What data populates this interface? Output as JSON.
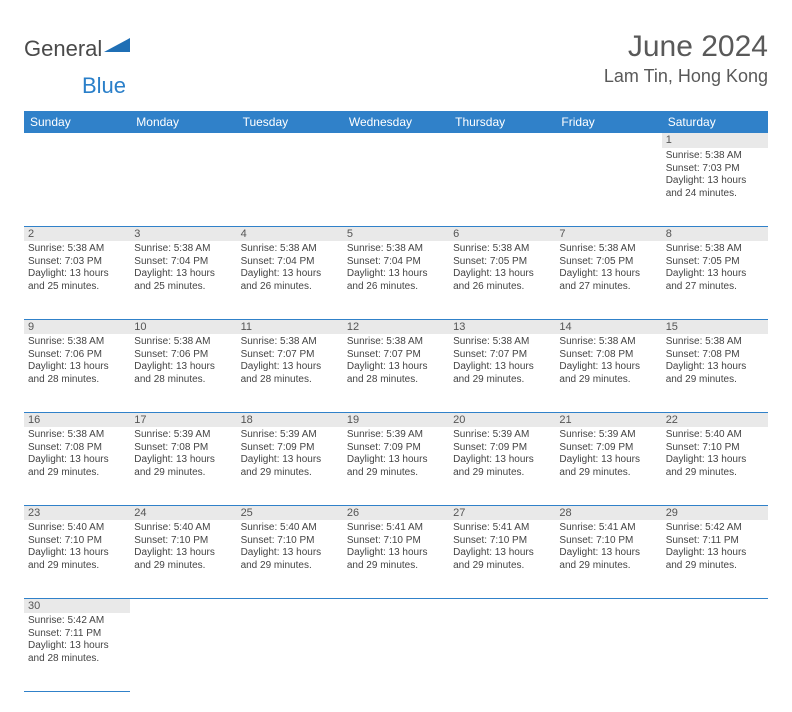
{
  "logo": {
    "text1": "General",
    "text2": "Blue",
    "triangle_color": "#1f6fb5"
  },
  "title": "June 2024",
  "location": "Lam Tin, Hong Kong",
  "colors": {
    "header_bg": "#3081c9",
    "header_text": "#ffffff",
    "daynum_bg": "#e9e9e9",
    "border": "#3081c9",
    "title_color": "#595959"
  },
  "day_headers": [
    "Sunday",
    "Monday",
    "Tuesday",
    "Wednesday",
    "Thursday",
    "Friday",
    "Saturday"
  ],
  "weeks": [
    [
      null,
      null,
      null,
      null,
      null,
      null,
      {
        "n": "1",
        "sr": "Sunrise: 5:38 AM",
        "ss": "Sunset: 7:03 PM",
        "dl": "Daylight: 13 hours and 24 minutes."
      }
    ],
    [
      {
        "n": "2",
        "sr": "Sunrise: 5:38 AM",
        "ss": "Sunset: 7:03 PM",
        "dl": "Daylight: 13 hours and 25 minutes."
      },
      {
        "n": "3",
        "sr": "Sunrise: 5:38 AM",
        "ss": "Sunset: 7:04 PM",
        "dl": "Daylight: 13 hours and 25 minutes."
      },
      {
        "n": "4",
        "sr": "Sunrise: 5:38 AM",
        "ss": "Sunset: 7:04 PM",
        "dl": "Daylight: 13 hours and 26 minutes."
      },
      {
        "n": "5",
        "sr": "Sunrise: 5:38 AM",
        "ss": "Sunset: 7:04 PM",
        "dl": "Daylight: 13 hours and 26 minutes."
      },
      {
        "n": "6",
        "sr": "Sunrise: 5:38 AM",
        "ss": "Sunset: 7:05 PM",
        "dl": "Daylight: 13 hours and 26 minutes."
      },
      {
        "n": "7",
        "sr": "Sunrise: 5:38 AM",
        "ss": "Sunset: 7:05 PM",
        "dl": "Daylight: 13 hours and 27 minutes."
      },
      {
        "n": "8",
        "sr": "Sunrise: 5:38 AM",
        "ss": "Sunset: 7:05 PM",
        "dl": "Daylight: 13 hours and 27 minutes."
      }
    ],
    [
      {
        "n": "9",
        "sr": "Sunrise: 5:38 AM",
        "ss": "Sunset: 7:06 PM",
        "dl": "Daylight: 13 hours and 28 minutes."
      },
      {
        "n": "10",
        "sr": "Sunrise: 5:38 AM",
        "ss": "Sunset: 7:06 PM",
        "dl": "Daylight: 13 hours and 28 minutes."
      },
      {
        "n": "11",
        "sr": "Sunrise: 5:38 AM",
        "ss": "Sunset: 7:07 PM",
        "dl": "Daylight: 13 hours and 28 minutes."
      },
      {
        "n": "12",
        "sr": "Sunrise: 5:38 AM",
        "ss": "Sunset: 7:07 PM",
        "dl": "Daylight: 13 hours and 28 minutes."
      },
      {
        "n": "13",
        "sr": "Sunrise: 5:38 AM",
        "ss": "Sunset: 7:07 PM",
        "dl": "Daylight: 13 hours and 29 minutes."
      },
      {
        "n": "14",
        "sr": "Sunrise: 5:38 AM",
        "ss": "Sunset: 7:08 PM",
        "dl": "Daylight: 13 hours and 29 minutes."
      },
      {
        "n": "15",
        "sr": "Sunrise: 5:38 AM",
        "ss": "Sunset: 7:08 PM",
        "dl": "Daylight: 13 hours and 29 minutes."
      }
    ],
    [
      {
        "n": "16",
        "sr": "Sunrise: 5:38 AM",
        "ss": "Sunset: 7:08 PM",
        "dl": "Daylight: 13 hours and 29 minutes."
      },
      {
        "n": "17",
        "sr": "Sunrise: 5:39 AM",
        "ss": "Sunset: 7:08 PM",
        "dl": "Daylight: 13 hours and 29 minutes."
      },
      {
        "n": "18",
        "sr": "Sunrise: 5:39 AM",
        "ss": "Sunset: 7:09 PM",
        "dl": "Daylight: 13 hours and 29 minutes."
      },
      {
        "n": "19",
        "sr": "Sunrise: 5:39 AM",
        "ss": "Sunset: 7:09 PM",
        "dl": "Daylight: 13 hours and 29 minutes."
      },
      {
        "n": "20",
        "sr": "Sunrise: 5:39 AM",
        "ss": "Sunset: 7:09 PM",
        "dl": "Daylight: 13 hours and 29 minutes."
      },
      {
        "n": "21",
        "sr": "Sunrise: 5:39 AM",
        "ss": "Sunset: 7:09 PM",
        "dl": "Daylight: 13 hours and 29 minutes."
      },
      {
        "n": "22",
        "sr": "Sunrise: 5:40 AM",
        "ss": "Sunset: 7:10 PM",
        "dl": "Daylight: 13 hours and 29 minutes."
      }
    ],
    [
      {
        "n": "23",
        "sr": "Sunrise: 5:40 AM",
        "ss": "Sunset: 7:10 PM",
        "dl": "Daylight: 13 hours and 29 minutes."
      },
      {
        "n": "24",
        "sr": "Sunrise: 5:40 AM",
        "ss": "Sunset: 7:10 PM",
        "dl": "Daylight: 13 hours and 29 minutes."
      },
      {
        "n": "25",
        "sr": "Sunrise: 5:40 AM",
        "ss": "Sunset: 7:10 PM",
        "dl": "Daylight: 13 hours and 29 minutes."
      },
      {
        "n": "26",
        "sr": "Sunrise: 5:41 AM",
        "ss": "Sunset: 7:10 PM",
        "dl": "Daylight: 13 hours and 29 minutes."
      },
      {
        "n": "27",
        "sr": "Sunrise: 5:41 AM",
        "ss": "Sunset: 7:10 PM",
        "dl": "Daylight: 13 hours and 29 minutes."
      },
      {
        "n": "28",
        "sr": "Sunrise: 5:41 AM",
        "ss": "Sunset: 7:10 PM",
        "dl": "Daylight: 13 hours and 29 minutes."
      },
      {
        "n": "29",
        "sr": "Sunrise: 5:42 AM",
        "ss": "Sunset: 7:11 PM",
        "dl": "Daylight: 13 hours and 29 minutes."
      }
    ],
    [
      {
        "n": "30",
        "sr": "Sunrise: 5:42 AM",
        "ss": "Sunset: 7:11 PM",
        "dl": "Daylight: 13 hours and 28 minutes."
      },
      null,
      null,
      null,
      null,
      null,
      null
    ]
  ]
}
